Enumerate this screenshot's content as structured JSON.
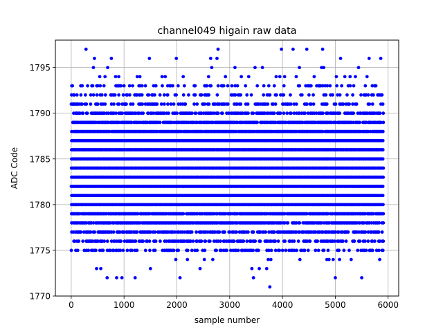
{
  "chart_data": {
    "type": "scatter",
    "title": "channel049 higain raw data",
    "xlabel": "sample number",
    "ylabel": "ADC Code",
    "xlim": [
      -300,
      6200
    ],
    "ylim": [
      1770,
      1798
    ],
    "x_ticks": [
      0,
      1000,
      2000,
      3000,
      4000,
      5000,
      6000
    ],
    "y_ticks": [
      1770,
      1775,
      1780,
      1785,
      1790,
      1795
    ],
    "grid": true,
    "marker": "circle",
    "color": "#0000ff",
    "n_samples": 5900,
    "series": [
      {
        "x_range": [
          0,
          5900
        ],
        "dense_levels": [
          1776,
          1777,
          1778,
          1779,
          1780,
          1781,
          1782,
          1783,
          1784,
          1785,
          1786,
          1787,
          1788,
          1789,
          1790
        ],
        "level_density": {
          "1775": 0.35,
          "1776": 0.55,
          "1777": 0.7,
          "1778": 0.85,
          "1779": 0.9,
          "1780": 1.0,
          "1781": 1.0,
          "1782": 1.0,
          "1783": 1.0,
          "1784": 1.0,
          "1785": 1.0,
          "1786": 1.0,
          "1787": 1.0,
          "1788": 0.95,
          "1789": 0.85,
          "1790": 0.65,
          "1791": 0.45,
          "1792": 0.3,
          "1793": 0.22
        },
        "outliers": [
          [
            10,
            1793
          ],
          [
            35,
            1791
          ],
          [
            60,
            1792
          ],
          [
            90,
            1790
          ],
          [
            180,
            1793
          ],
          [
            280,
            1797
          ],
          [
            310,
            1793
          ],
          [
            420,
            1795
          ],
          [
            440,
            1796
          ],
          [
            480,
            1773
          ],
          [
            540,
            1794
          ],
          [
            560,
            1773
          ],
          [
            620,
            1793
          ],
          [
            640,
            1794
          ],
          [
            680,
            1772
          ],
          [
            690,
            1795
          ],
          [
            760,
            1796
          ],
          [
            810,
            1792
          ],
          [
            840,
            1794
          ],
          [
            860,
            1772
          ],
          [
            900,
            1794
          ],
          [
            960,
            1772
          ],
          [
            1000,
            1793
          ],
          [
            1020,
            1791
          ],
          [
            1210,
            1772
          ],
          [
            1250,
            1794
          ],
          [
            1300,
            1794
          ],
          [
            1480,
            1796
          ],
          [
            1500,
            1773
          ],
          [
            1600,
            1793
          ],
          [
            1720,
            1794
          ],
          [
            1780,
            1794
          ],
          [
            1820,
            1792
          ],
          [
            1980,
            1774
          ],
          [
            1990,
            1796
          ],
          [
            2060,
            1772
          ],
          [
            2120,
            1794
          ],
          [
            2200,
            1774
          ],
          [
            2440,
            1773
          ],
          [
            2520,
            1774
          ],
          [
            2600,
            1794
          ],
          [
            2640,
            1796
          ],
          [
            2660,
            1795
          ],
          [
            2680,
            1774
          ],
          [
            2760,
            1796
          ],
          [
            2780,
            1797
          ],
          [
            2860,
            1793
          ],
          [
            2920,
            1794
          ],
          [
            3100,
            1795
          ],
          [
            3220,
            1794
          ],
          [
            3300,
            1793
          ],
          [
            3360,
            1794
          ],
          [
            3420,
            1773
          ],
          [
            3450,
            1772
          ],
          [
            3480,
            1795
          ],
          [
            3560,
            1773
          ],
          [
            3620,
            1795
          ],
          [
            3700,
            1773
          ],
          [
            3730,
            1774
          ],
          [
            3760,
            1771
          ],
          [
            3780,
            1774
          ],
          [
            3880,
            1794
          ],
          [
            3950,
            1794
          ],
          [
            3980,
            1797
          ],
          [
            4040,
            1794
          ],
          [
            4100,
            1791
          ],
          [
            4200,
            1797
          ],
          [
            4260,
            1794
          ],
          [
            4320,
            1795
          ],
          [
            4330,
            1774
          ],
          [
            4420,
            1775
          ],
          [
            4460,
            1797
          ],
          [
            4500,
            1793
          ],
          [
            4600,
            1794
          ],
          [
            4700,
            1793
          ],
          [
            4740,
            1795
          ],
          [
            4760,
            1797
          ],
          [
            4780,
            1795
          ],
          [
            4840,
            1774
          ],
          [
            4880,
            1774
          ],
          [
            4900,
            1793
          ],
          [
            4960,
            1774
          ],
          [
            5000,
            1772
          ],
          [
            5020,
            1794
          ],
          [
            5080,
            1774
          ],
          [
            5100,
            1796
          ],
          [
            5180,
            1794
          ],
          [
            5280,
            1794
          ],
          [
            5300,
            1774
          ],
          [
            5380,
            1794
          ],
          [
            5440,
            1795
          ],
          [
            5500,
            1772
          ],
          [
            5600,
            1794
          ],
          [
            5640,
            1796
          ],
          [
            5700,
            1793
          ],
          [
            5760,
            1793
          ],
          [
            5840,
            1774
          ],
          [
            5860,
            1796
          ]
        ]
      }
    ]
  }
}
